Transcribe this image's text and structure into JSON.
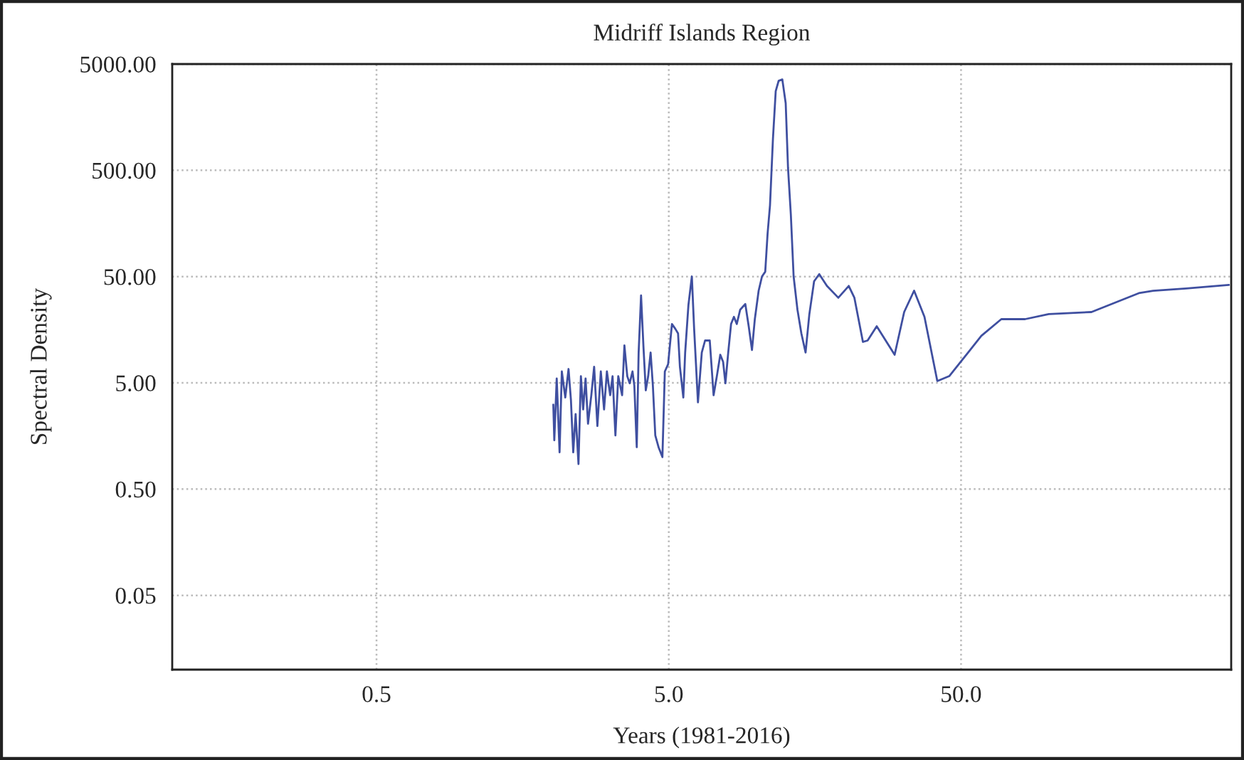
{
  "chart_data": {
    "type": "line",
    "title": "Midriff Islands Region",
    "xlabel": "Years (1981-2016)",
    "ylabel": "Spectral Density",
    "log": "xy",
    "grid": true,
    "line_style": "solid",
    "marker": "none",
    "xlim": [
      0.1,
      420
    ],
    "ylim": [
      0.01,
      5000
    ],
    "xticks": [
      {
        "value": 0.5,
        "label": "0.5"
      },
      {
        "value": 5,
        "label": "5.0"
      },
      {
        "value": 50,
        "label": "50.0"
      }
    ],
    "yticks": [
      {
        "value": 0.05,
        "label": "0.05"
      },
      {
        "value": 0.5,
        "label": "0.50"
      },
      {
        "value": 5,
        "label": "5.00"
      },
      {
        "value": 50,
        "label": "50.00"
      },
      {
        "value": 500,
        "label": "500.00"
      },
      {
        "value": 5000,
        "label": "5000.00"
      }
    ],
    "series": [
      {
        "color": "#3f4fa0",
        "x": [
          2.013,
          2.029,
          2.068,
          2.115,
          2.153,
          2.212,
          2.27,
          2.313,
          2.355,
          2.4,
          2.455,
          2.502,
          2.547,
          2.596,
          2.646,
          2.716,
          2.777,
          2.849,
          2.927,
          3.003,
          3.071,
          3.151,
          3.211,
          3.284,
          3.358,
          3.462,
          3.525,
          3.605,
          3.674,
          3.757,
          3.812,
          3.885,
          3.943,
          4.019,
          4.097,
          4.171,
          4.251,
          4.333,
          4.411,
          4.496,
          4.613,
          4.755,
          4.847,
          4.973,
          5.126,
          5.26,
          5.379,
          5.458,
          5.607,
          5.689,
          5.838,
          5.997,
          6.105,
          6.292,
          6.485,
          6.655,
          6.905,
          7.117,
          7.303,
          7.502,
          7.672,
          7.811,
          7.987,
          8.167,
          8.353,
          8.542,
          8.774,
          9.137,
          9.385,
          9.63,
          9.849,
          10.15,
          10.42,
          10.69,
          10.89,
          11.1,
          11.36,
          11.61,
          11.88,
          12.23,
          12.56,
          12.79,
          13.08,
          13.37,
          13.78,
          14.21,
          14.69,
          15.13,
          15.71,
          16.36,
          17.38,
          19.01,
          20.64,
          21.58,
          23.08,
          23.95,
          25.73,
          29.63,
          31.94,
          34.54,
          37.48,
          41.47,
          45.56,
          52.87,
          58.68,
          68.66,
          82.79,
          99.8,
          139.7,
          202.9,
          227.0,
          294.6,
          412.4
        ],
        "values": [
          3.12,
          1.44,
          5.49,
          1.11,
          6.4,
          3.64,
          6.75,
          3.45,
          1.11,
          2.54,
          0.861,
          5.78,
          2.81,
          5.49,
          2.06,
          3.82,
          7.09,
          1.96,
          6.4,
          2.81,
          6.4,
          3.82,
          5.78,
          1.6,
          5.78,
          3.82,
          11.26,
          5.78,
          4.95,
          6.4,
          4.7,
          1.24,
          9.65,
          33.2,
          10.72,
          4.25,
          5.78,
          9.65,
          4.7,
          1.6,
          1.24,
          1.0,
          6.4,
          7.47,
          17.88,
          16.16,
          14.59,
          7.09,
          3.64,
          9.65,
          27.1,
          50.1,
          16.16,
          3.28,
          9.65,
          12.51,
          12.51,
          3.82,
          5.78,
          9.19,
          7.87,
          4.95,
          9.65,
          17.88,
          20.87,
          17.88,
          24.36,
          27.56,
          17.03,
          10.17,
          19.87,
          36.8,
          50.1,
          55.5,
          126.6,
          234.8,
          989,
          2773,
          3474,
          3583,
          2140,
          533,
          191,
          50.1,
          24.36,
          14.59,
          9.65,
          22.0,
          45.2,
          52.7,
          40.8,
          31.6,
          40.8,
          31.6,
          12.13,
          12.51,
          17.03,
          9.19,
          23.18,
          36.8,
          20.87,
          5.2,
          5.78,
          9.65,
          13.85,
          19.87,
          19.87,
          22.2,
          23.18,
          34.9,
          36.8,
          38.7,
          41.7
        ]
      }
    ]
  }
}
